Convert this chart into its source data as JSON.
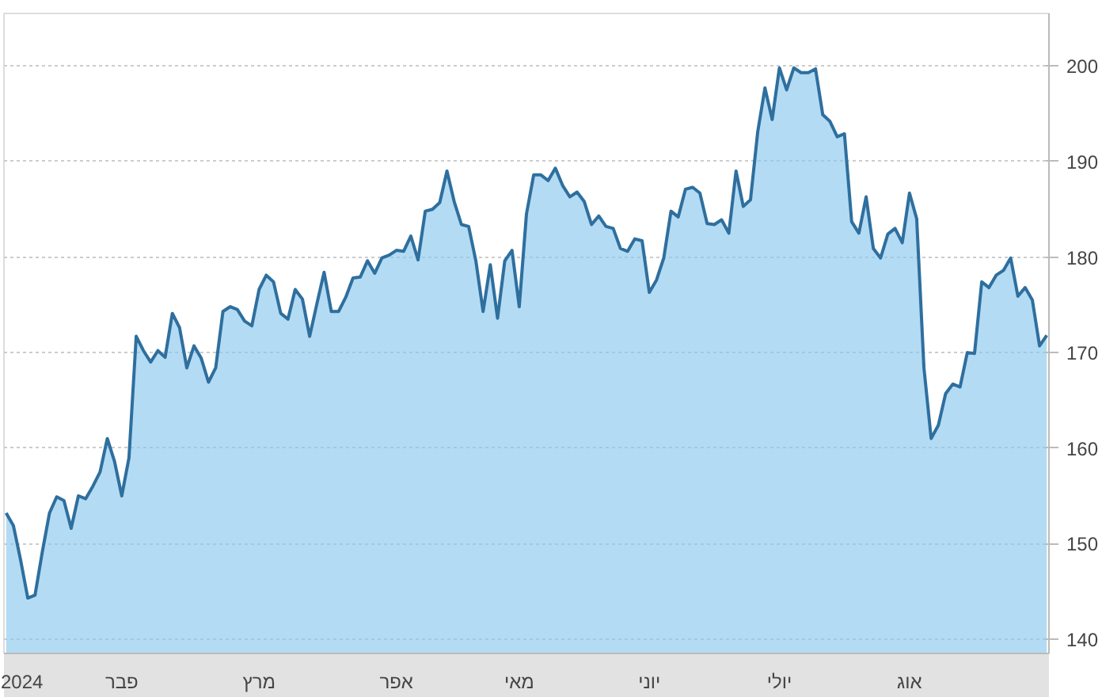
{
  "chart_data": {
    "type": "area",
    "categories": [
      null,
      "2024",
      null,
      null,
      null,
      null,
      null,
      null,
      null,
      null,
      null,
      null,
      null,
      null,
      null,
      null,
      "פבר",
      null,
      null,
      null,
      null,
      null,
      null,
      null,
      null,
      null,
      null,
      null,
      null,
      null,
      null,
      null,
      null,
      null,
      null,
      "מרץ",
      null,
      null,
      null,
      null,
      null,
      null,
      null,
      null,
      null,
      null,
      null,
      null,
      null,
      null,
      null,
      null,
      null,
      null,
      "אפר",
      null,
      null,
      null,
      null,
      null,
      null,
      null,
      null,
      null,
      null,
      null,
      null,
      null,
      null,
      null,
      null,
      "מאי",
      null,
      null,
      null,
      null,
      null,
      null,
      null,
      null,
      null,
      null,
      null,
      null,
      null,
      null,
      null,
      null,
      null,
      "יוני",
      null,
      null,
      null,
      null,
      null,
      null,
      null,
      null,
      null,
      null,
      null,
      null,
      null,
      null,
      null,
      null,
      null,
      "יולי",
      null,
      null,
      null,
      null,
      null,
      null,
      null,
      null,
      null,
      null,
      null,
      null,
      null,
      null,
      null,
      null,
      null,
      "אוג",
      null,
      null,
      null,
      null,
      null,
      null,
      null,
      null,
      null,
      null,
      null,
      null,
      null,
      null,
      null,
      null,
      null,
      null,
      null
    ],
    "series": [
      {
        "color": "#2e6f9e",
        "values": [
          153.2,
          151.9,
          148.3,
          144.3,
          144.6,
          149.1,
          153.2,
          154.9,
          154.5,
          151.6,
          155.0,
          154.7,
          156.0,
          157.5,
          161.0,
          158.6,
          155.0,
          159.0,
          171.7,
          170.2,
          169.0,
          170.2,
          169.5,
          174.1,
          172.6,
          168.4,
          170.7,
          169.4,
          166.9,
          168.4,
          174.3,
          174.8,
          174.5,
          173.3,
          172.8,
          176.6,
          178.1,
          177.4,
          174.1,
          173.5,
          176.6,
          175.6,
          171.7,
          175.1,
          178.4,
          174.3,
          174.3,
          175.8,
          177.8,
          177.9,
          179.6,
          178.3,
          179.9,
          180.2,
          180.7,
          180.6,
          182.2,
          179.7,
          184.8,
          185.0,
          185.7,
          189.0,
          185.8,
          183.4,
          183.2,
          179.6,
          174.3,
          179.2,
          173.6,
          179.6,
          180.7,
          174.8,
          184.5,
          188.6,
          188.6,
          188.0,
          189.3,
          187.5,
          186.3,
          186.8,
          185.8,
          183.4,
          184.3,
          183.2,
          183.0,
          180.9,
          180.6,
          181.9,
          181.7,
          176.3,
          177.6,
          179.9,
          184.8,
          184.2,
          187.1,
          187.3,
          186.7,
          183.5,
          183.4,
          183.9,
          182.5,
          189.0,
          185.3,
          186.0,
          193.1,
          197.7,
          194.4,
          199.8,
          197.5,
          199.8,
          199.3,
          199.3,
          199.7,
          194.9,
          194.2,
          192.6,
          192.9,
          183.7,
          182.5,
          186.3,
          180.9,
          179.9,
          182.4,
          183.0,
          181.5,
          186.7,
          184.0,
          168.4,
          161.0,
          162.4,
          165.7,
          166.7,
          166.4,
          170.0,
          169.9,
          177.4,
          176.8,
          178.1,
          178.6,
          179.9,
          175.9,
          176.8,
          175.5,
          170.7,
          171.8
        ]
      }
    ],
    "ylim": [
      138.5,
      205.5
    ],
    "yticks": [
      140,
      150,
      160,
      170,
      180,
      190,
      200
    ],
    "grid": "y"
  }
}
